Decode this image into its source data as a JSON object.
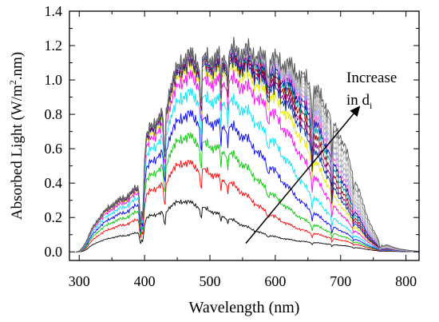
{
  "chart_data": {
    "type": "line",
    "xlabel": "Wavelength (nm)",
    "ylabel_main": "Absorbed Light (W/m",
    "ylabel_sup": "2",
    "ylabel_tail": ".nm)",
    "xlim": [
      285,
      820
    ],
    "ylim": [
      -0.05,
      1.4
    ],
    "xticks": [
      300,
      400,
      500,
      600,
      700,
      800
    ],
    "xtick_labels": [
      "300",
      "400",
      "500",
      "600",
      "700",
      "800"
    ],
    "yticks": [
      0.0,
      0.2,
      0.4,
      0.6,
      0.8,
      1.0,
      1.2,
      1.4
    ],
    "ytick_labels": [
      "0.0",
      "0.2",
      "0.4",
      "0.6",
      "0.8",
      "1.0",
      "1.2",
      "1.4"
    ],
    "grid": false,
    "annotation": {
      "line1": "Increase",
      "line2_main": "in d",
      "line2_sub": "i",
      "arrow_from": [
        555,
        0.05
      ],
      "arrow_to": [
        730,
        0.85
      ]
    },
    "envelope": {
      "wavelength": [
        295,
        300,
        310,
        320,
        330,
        340,
        350,
        360,
        370,
        380,
        390,
        398,
        402,
        410,
        420,
        430,
        440,
        450,
        460,
        470,
        480,
        490,
        500,
        510,
        520,
        530,
        540,
        550,
        560,
        570,
        580,
        590,
        600,
        610,
        620,
        630,
        640,
        650,
        660,
        670,
        680,
        690,
        700,
        710,
        720,
        730,
        740,
        750,
        760,
        765,
        770,
        780,
        790,
        800,
        810,
        820
      ],
      "irradiance": [
        0.0,
        0.01,
        0.06,
        0.14,
        0.2,
        0.24,
        0.28,
        0.3,
        0.32,
        0.35,
        0.38,
        0.4,
        0.65,
        0.74,
        0.78,
        0.8,
        0.98,
        1.06,
        1.14,
        1.14,
        1.12,
        1.12,
        1.13,
        1.14,
        1.15,
        1.17,
        1.18,
        1.17,
        1.18,
        1.16,
        1.14,
        1.15,
        1.14,
        1.13,
        1.12,
        1.1,
        1.07,
        1.05,
        1.02,
        0.99,
        0.93,
        0.86,
        0.8,
        0.71,
        0.58,
        0.46,
        0.32,
        0.2,
        0.1,
        0.06,
        0.08,
        0.06,
        0.04,
        0.03,
        0.02,
        0.01
      ]
    },
    "series": [
      {
        "color": "#000000",
        "ratio_peak": 0.3,
        "red_edge": 525,
        "red_width": 70,
        "uv_edge": 308
      },
      {
        "color": "#ff0000",
        "ratio_peak": 0.5,
        "red_edge": 552,
        "red_width": 75,
        "uv_edge": 307
      },
      {
        "color": "#00cc00",
        "ratio_peak": 0.62,
        "red_edge": 575,
        "red_width": 75,
        "uv_edge": 306
      },
      {
        "color": "#0000ff",
        "ratio_peak": 0.72,
        "red_edge": 598,
        "red_width": 75,
        "uv_edge": 305
      },
      {
        "color": "#00e5ff",
        "ratio_peak": 0.82,
        "red_edge": 618,
        "red_width": 75,
        "uv_edge": 305
      },
      {
        "color": "#ff00ff",
        "ratio_peak": 0.9,
        "red_edge": 640,
        "red_width": 75,
        "uv_edge": 304
      },
      {
        "color": "#e6e600",
        "ratio_peak": 0.94,
        "red_edge": 655,
        "red_width": 75,
        "uv_edge": 304
      },
      {
        "color": "#003399",
        "ratio_peak": 0.96,
        "red_edge": 665,
        "red_width": 75,
        "uv_edge": 303
      },
      {
        "color": "#7f007f",
        "ratio_peak": 0.97,
        "red_edge": 672,
        "red_width": 75,
        "uv_edge": 303
      },
      {
        "color": "#990000",
        "ratio_peak": 0.98,
        "red_edge": 680,
        "red_width": 75,
        "uv_edge": 303
      },
      {
        "color": "#009999",
        "ratio_peak": 0.985,
        "red_edge": 688,
        "red_width": 75,
        "uv_edge": 302
      },
      {
        "color": "#0000aa",
        "ratio_peak": 0.99,
        "red_edge": 695,
        "red_width": 75,
        "uv_edge": 302
      },
      {
        "color": "#ff66cc",
        "ratio_peak": 0.992,
        "red_edge": 702,
        "red_width": 75,
        "uv_edge": 302
      },
      {
        "color": "#9999ff",
        "ratio_peak": 0.994,
        "red_edge": 710,
        "red_width": 75,
        "uv_edge": 302
      },
      {
        "color": "#aaaaaa",
        "ratio_peak": 0.996,
        "red_edge": 718,
        "red_width": 75,
        "uv_edge": 301
      },
      {
        "color": "#bbbbbb",
        "ratio_peak": 0.997,
        "red_edge": 726,
        "red_width": 75,
        "uv_edge": 301
      },
      {
        "color": "#c8c8c8",
        "ratio_peak": 0.998,
        "red_edge": 735,
        "red_width": 75,
        "uv_edge": 301
      },
      {
        "color": "#888888",
        "ratio_peak": 0.999,
        "red_edge": 745,
        "red_width": 75,
        "uv_edge": 300
      },
      {
        "color": "#555555",
        "ratio_peak": 1.0,
        "red_edge": 760,
        "red_width": 75,
        "uv_edge": 300
      }
    ]
  }
}
